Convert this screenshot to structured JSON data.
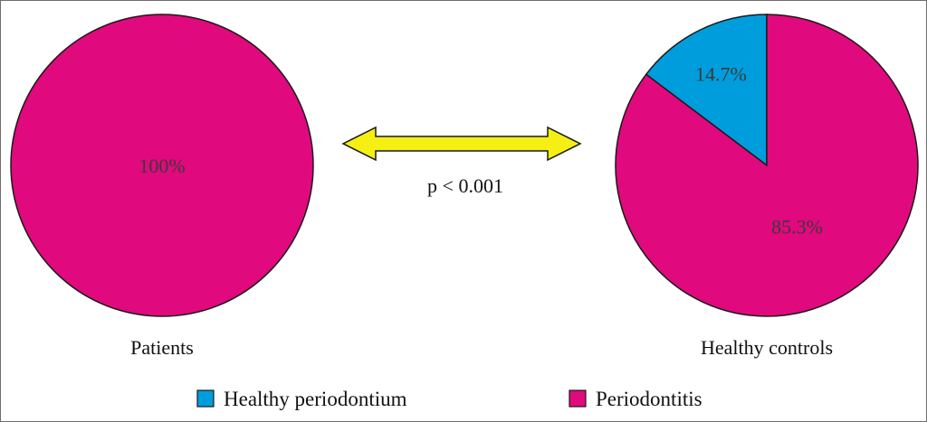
{
  "chart_data": [
    {
      "type": "pie",
      "title": "Patients",
      "slices": [
        {
          "name": "Healthy periodontium",
          "value": 0
        },
        {
          "name": "Periodontitis",
          "value": 100,
          "label": "100%"
        }
      ]
    },
    {
      "type": "pie",
      "title": "Healthy controls",
      "slices": [
        {
          "name": "Healthy periodontium",
          "value": 14.7,
          "label": "14.7%"
        },
        {
          "name": "Periodontitis",
          "value": 85.3,
          "label": "85.3%"
        }
      ]
    }
  ],
  "comparison": {
    "p_value_text": "p < 0.001"
  },
  "legend": [
    {
      "name": "Healthy periodontium",
      "color": "#009ddd"
    },
    {
      "name": "Periodontitis",
      "color": "#e0097d"
    }
  ],
  "colors": {
    "Healthy periodontium": "#009ddd",
    "Periodontitis": "#e0097d",
    "arrow_fill": "#f5ef13",
    "outline": "#1a1a1a"
  }
}
